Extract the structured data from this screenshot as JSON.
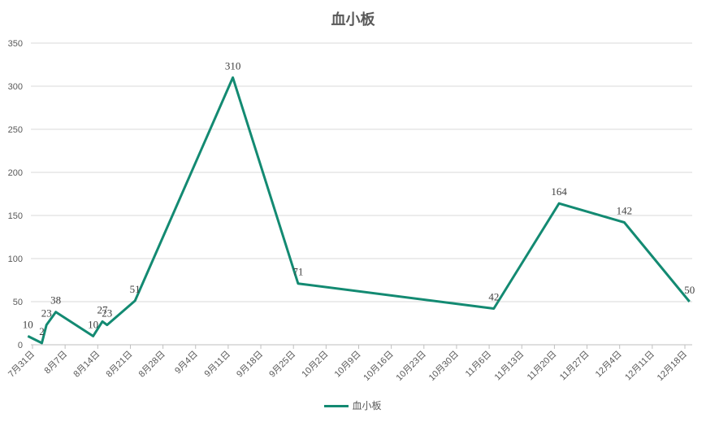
{
  "chart_data": {
    "type": "line",
    "title": "血小板",
    "xlabel": "",
    "ylabel": "",
    "ylim": [
      0,
      350
    ],
    "yticks": [
      0,
      50,
      100,
      150,
      200,
      250,
      300,
      350
    ],
    "xticks": [
      "7月31日",
      "8月7日",
      "8月14日",
      "8月21日",
      "8月28日",
      "9月4日",
      "9月11日",
      "9月18日",
      "9月25日",
      "10月2日",
      "10月9日",
      "10月16日",
      "10月23日",
      "10月30日",
      "11月6日",
      "11月13日",
      "11月20日",
      "11月27日",
      "12月4日",
      "12月11日",
      "12月18日"
    ],
    "series": [
      {
        "name": "血小板",
        "color": "#138A72",
        "points": [
          {
            "date": "7月30日",
            "value": 10
          },
          {
            "date": "8月2日",
            "value": 2
          },
          {
            "date": "8月3日",
            "value": 23
          },
          {
            "date": "8月5日",
            "value": 38
          },
          {
            "date": "8月13日",
            "value": 10
          },
          {
            "date": "8月15日",
            "value": 27
          },
          {
            "date": "8月16日",
            "value": 23
          },
          {
            "date": "8月22日",
            "value": 51
          },
          {
            "date": "9月12日",
            "value": 310
          },
          {
            "date": "9月26日",
            "value": 71
          },
          {
            "date": "11月7日",
            "value": 42
          },
          {
            "date": "11月21日",
            "value": 164
          },
          {
            "date": "12月5日",
            "value": 142
          },
          {
            "date": "12月19日",
            "value": 50
          }
        ],
        "labels": [
          "10",
          "2",
          "23",
          "38",
          "10",
          "27",
          "23",
          "51",
          "310",
          "71",
          "42",
          "164",
          "142",
          "50"
        ]
      }
    ],
    "legend_position": "bottom",
    "grid": true
  }
}
